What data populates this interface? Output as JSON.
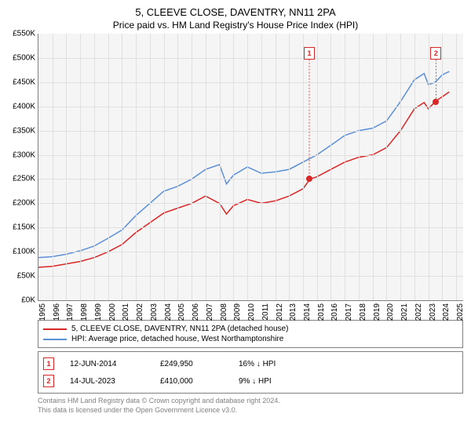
{
  "title": "5, CLEEVE CLOSE, DAVENTRY, NN11 2PA",
  "subtitle": "Price paid vs. HM Land Registry's House Price Index (HPI)",
  "chart": {
    "type": "line",
    "background_color": "#f5f5f5",
    "grid_color": "#e0e0e0",
    "axis_color": "#808080",
    "xlim": [
      1995,
      2025.5
    ],
    "ylim": [
      0,
      550
    ],
    "ytick_step": 50,
    "ytick_prefix": "£",
    "ytick_suffix": "K",
    "xticks": [
      1995,
      1996,
      1997,
      1998,
      1999,
      2000,
      2001,
      2002,
      2003,
      2004,
      2005,
      2006,
      2007,
      2008,
      2009,
      2010,
      2011,
      2012,
      2013,
      2014,
      2015,
      2016,
      2017,
      2018,
      2019,
      2020,
      2021,
      2022,
      2023,
      2024,
      2025
    ],
    "series": [
      {
        "name": "price_paid",
        "label": "5, CLEEVE CLOSE, DAVENTRY, NN11 2PA (detached house)",
        "color": "#d92626",
        "line_width": 1.5,
        "points": [
          [
            1995,
            68
          ],
          [
            1996,
            70
          ],
          [
            1997,
            75
          ],
          [
            1998,
            80
          ],
          [
            1999,
            88
          ],
          [
            2000,
            100
          ],
          [
            2001,
            115
          ],
          [
            2002,
            140
          ],
          [
            2003,
            160
          ],
          [
            2004,
            180
          ],
          [
            2005,
            190
          ],
          [
            2006,
            200
          ],
          [
            2007,
            215
          ],
          [
            2008,
            200
          ],
          [
            2008.5,
            178
          ],
          [
            2009,
            195
          ],
          [
            2010,
            208
          ],
          [
            2011,
            200
          ],
          [
            2012,
            205
          ],
          [
            2013,
            215
          ],
          [
            2014,
            230
          ],
          [
            2014.5,
            250
          ],
          [
            2015,
            255
          ],
          [
            2016,
            270
          ],
          [
            2017,
            285
          ],
          [
            2018,
            295
          ],
          [
            2019,
            300
          ],
          [
            2020,
            315
          ],
          [
            2021,
            350
          ],
          [
            2022,
            395
          ],
          [
            2022.7,
            408
          ],
          [
            2023,
            395
          ],
          [
            2023.5,
            410
          ],
          [
            2024,
            420
          ],
          [
            2024.5,
            430
          ]
        ]
      },
      {
        "name": "hpi",
        "label": "HPI: Average price, detached house, West Northamptonshire",
        "color": "#5b8fd6",
        "line_width": 1.5,
        "points": [
          [
            1995,
            88
          ],
          [
            1996,
            90
          ],
          [
            1997,
            95
          ],
          [
            1998,
            102
          ],
          [
            1999,
            112
          ],
          [
            2000,
            128
          ],
          [
            2001,
            145
          ],
          [
            2002,
            175
          ],
          [
            2003,
            200
          ],
          [
            2004,
            225
          ],
          [
            2005,
            235
          ],
          [
            2006,
            250
          ],
          [
            2007,
            270
          ],
          [
            2008,
            280
          ],
          [
            2008.5,
            240
          ],
          [
            2009,
            258
          ],
          [
            2010,
            275
          ],
          [
            2011,
            262
          ],
          [
            2012,
            265
          ],
          [
            2013,
            270
          ],
          [
            2014,
            285
          ],
          [
            2015,
            300
          ],
          [
            2016,
            320
          ],
          [
            2017,
            340
          ],
          [
            2018,
            350
          ],
          [
            2019,
            355
          ],
          [
            2020,
            370
          ],
          [
            2021,
            410
          ],
          [
            2022,
            455
          ],
          [
            2022.7,
            468
          ],
          [
            2023,
            445
          ],
          [
            2023.5,
            450
          ],
          [
            2024,
            465
          ],
          [
            2024.5,
            472
          ]
        ]
      }
    ],
    "markers": [
      {
        "n": 1,
        "x": 2014.45,
        "y": 510,
        "dot_y": 250,
        "color": "#d92626"
      },
      {
        "n": 2,
        "x": 2023.55,
        "y": 510,
        "dot_y": 410,
        "color": "#d92626"
      }
    ]
  },
  "legend": {
    "items": [
      {
        "color": "#d92626",
        "label": "5, CLEEVE CLOSE, DAVENTRY, NN11 2PA (detached house)"
      },
      {
        "color": "#5b8fd6",
        "label": "HPI: Average price, detached house, West Northamptonshire"
      }
    ]
  },
  "sales": [
    {
      "n": 1,
      "color": "#d92626",
      "date": "12-JUN-2014",
      "price": "£249,950",
      "diff": "16% ↓ HPI"
    },
    {
      "n": 2,
      "color": "#d92626",
      "date": "14-JUL-2023",
      "price": "£410,000",
      "diff": "9% ↓ HPI"
    }
  ],
  "footer1": "Contains HM Land Registry data © Crown copyright and database right 2024.",
  "footer2": "This data is licensed under the Open Government Licence v3.0."
}
